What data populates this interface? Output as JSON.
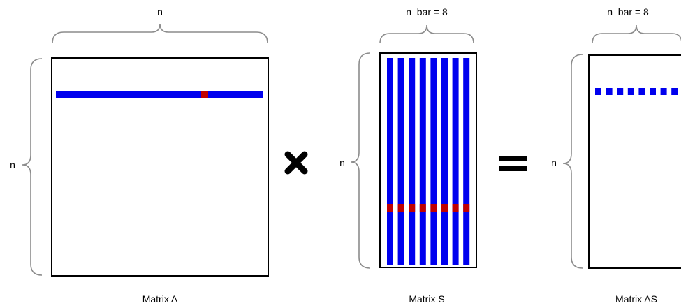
{
  "colors": {
    "row": "#0000ee",
    "highlight": "#c00000",
    "brace": "#8c8c8c",
    "frame": "#000000"
  },
  "icons": {
    "multiply": "multiply-icon",
    "equals": "equals-icon"
  },
  "matrix_a": {
    "title": "Matrix A",
    "top_label": "n",
    "left_label": "n"
  },
  "matrix_s": {
    "title": "Matrix S",
    "top_label": "n_bar = 8",
    "left_label": "n",
    "columns": 8
  },
  "matrix_as": {
    "title": "Matrix AS",
    "top_label": "n_bar = 8",
    "left_label": "n",
    "entries": 8
  }
}
